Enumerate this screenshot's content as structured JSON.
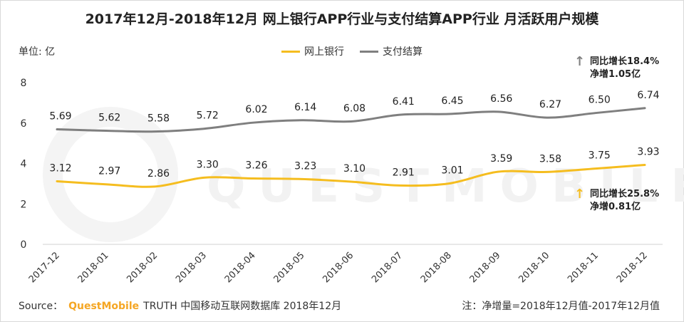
{
  "title": "2017年12月-2018年12月 网上银行APP行业与支付结算APP行业 月活跃用户规模",
  "unit_label": "单位: 亿",
  "watermark": "QUESTMOBILE",
  "annotations": {
    "payment": {
      "line1": "同比增长18.4%",
      "line2": "净增1.05亿",
      "arrow": "↑"
    },
    "banking": {
      "line1": "同比增长25.8%",
      "line2": "净增0.81亿",
      "arrow": "↑"
    }
  },
  "footer": {
    "source_label": "Source：",
    "brand": "QuestMobile",
    "source_text": "TRUTH 中国移动互联网数据库 2018年12月",
    "note": "注：净增量=2018年12月值-2017年12月值"
  },
  "colors": {
    "banking": "#f5bd1f",
    "payment": "#7f7f7f",
    "banking_arrow": "#f5bd1f",
    "payment_arrow": "#808080"
  },
  "chart_data": {
    "type": "line",
    "title": "2017年12月-2018年12月 网上银行APP行业与支付结算APP行业 月活跃用户规模",
    "ylabel": "单位: 亿",
    "xlabel": "",
    "ylim": [
      0,
      8
    ],
    "yticks": [
      0,
      2,
      4,
      6,
      8
    ],
    "legend_position": "top-center",
    "grid": false,
    "categories": [
      "2017-12",
      "2018-01",
      "2018-02",
      "2018-03",
      "2018-04",
      "2018-05",
      "2018-06",
      "2018-07",
      "2018-08",
      "2018-09",
      "2018-10",
      "2018-11",
      "2018-12"
    ],
    "series": [
      {
        "name": "网上银行",
        "key": "banking",
        "values": [
          3.12,
          2.97,
          2.86,
          3.3,
          3.26,
          3.23,
          3.1,
          2.91,
          3.01,
          3.59,
          3.58,
          3.75,
          3.93
        ]
      },
      {
        "name": "支付结算",
        "key": "payment",
        "values": [
          5.69,
          5.62,
          5.58,
          5.72,
          6.02,
          6.14,
          6.08,
          6.41,
          6.45,
          6.56,
          6.27,
          6.5,
          6.74
        ]
      }
    ]
  }
}
